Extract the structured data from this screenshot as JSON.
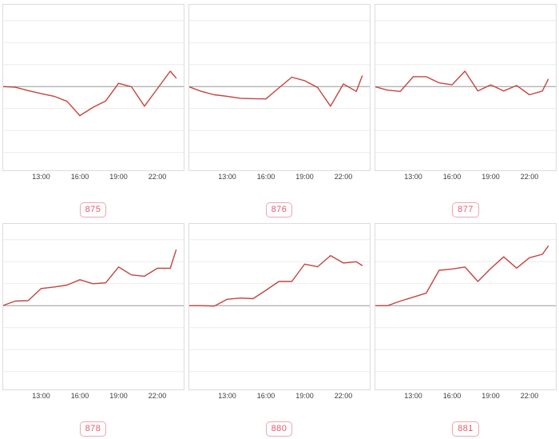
{
  "page": {
    "background": "#ffffff"
  },
  "colors": {
    "line": "#c5443e",
    "grid_line": "#ececec",
    "zero_line": "#999999",
    "plot_border": "#dcdcdc",
    "tick_text": "#3c3c3c",
    "badge_text": "#e25b70",
    "badge_border": "#f0a4b0"
  },
  "axis": {
    "x_tick_labels": [
      "13:00",
      "16:00",
      "19:00",
      "22:00"
    ],
    "x_tick_hours": [
      13,
      16,
      19,
      22
    ]
  },
  "layout_hints": {
    "grid": "horizontal only",
    "grid_step_units": 1,
    "grid_units_light": [
      3,
      2,
      1,
      -1,
      -2,
      -3
    ],
    "baseline_unit": 0,
    "ylim_units": [
      -3.8,
      3.72
    ],
    "x_range_hours": [
      10,
      23.45
    ],
    "legend": "none"
  },
  "chart_data": [
    {
      "id": "875",
      "label": "875",
      "type": "line",
      "x_hours": [
        10,
        11,
        12,
        13,
        14,
        15,
        16,
        17,
        18,
        19,
        20,
        21,
        22,
        23,
        23.45
      ],
      "values_units": [
        0,
        -0.03,
        -0.18,
        -0.32,
        -0.44,
        -0.67,
        -1.32,
        -0.95,
        -0.65,
        0.15,
        -0.01,
        -0.89,
        -0.1,
        0.7,
        0.39
      ]
    },
    {
      "id": "876",
      "label": "876",
      "type": "line",
      "x_hours": [
        10,
        11,
        12,
        13,
        14,
        15,
        16,
        17,
        18,
        19,
        20,
        21,
        22,
        23,
        23.45
      ],
      "values_units": [
        0,
        -0.22,
        -0.37,
        -0.44,
        -0.53,
        -0.55,
        -0.56,
        -0.06,
        0.43,
        0.27,
        -0.04,
        -0.89,
        0.12,
        -0.22,
        0.48
      ]
    },
    {
      "id": "877",
      "label": "877",
      "type": "line",
      "x_hours": [
        10,
        11,
        12,
        13,
        14,
        15,
        16,
        17,
        18,
        19,
        20,
        21,
        22,
        23,
        23.45
      ],
      "values_units": [
        0,
        -0.16,
        -0.22,
        0.45,
        0.45,
        0.17,
        0.08,
        0.7,
        -0.2,
        0.08,
        -0.2,
        0.05,
        -0.37,
        -0.2,
        0.33
      ]
    },
    {
      "id": "878",
      "label": "878",
      "type": "line",
      "x_hours": [
        10,
        11,
        12,
        13,
        14,
        15,
        16,
        17,
        18,
        19,
        20,
        21,
        22,
        23,
        23.45
      ],
      "values_units": [
        0,
        0.21,
        0.23,
        0.78,
        0.85,
        0.94,
        1.18,
        1.0,
        1.04,
        1.76,
        1.4,
        1.34,
        1.7,
        1.7,
        2.53
      ]
    },
    {
      "id": "880",
      "label": "880",
      "type": "line",
      "x_hours": [
        10,
        11,
        12,
        13,
        14,
        15,
        16,
        17,
        18,
        19,
        20,
        21,
        22,
        23,
        23.45
      ],
      "values_units": [
        0,
        0.0,
        -0.02,
        0.29,
        0.35,
        0.32,
        0.7,
        1.1,
        1.1,
        1.89,
        1.77,
        2.28,
        1.94,
        2.0,
        1.83
      ]
    },
    {
      "id": "881",
      "label": "881",
      "type": "line",
      "x_hours": [
        10,
        11,
        12,
        13,
        14,
        15,
        16,
        17,
        18,
        19,
        20,
        21,
        22,
        23,
        23.45
      ],
      "values_units": [
        0,
        0.0,
        0.21,
        0.39,
        0.57,
        1.61,
        1.67,
        1.76,
        1.1,
        1.69,
        2.22,
        1.71,
        2.18,
        2.34,
        2.71
      ]
    }
  ]
}
